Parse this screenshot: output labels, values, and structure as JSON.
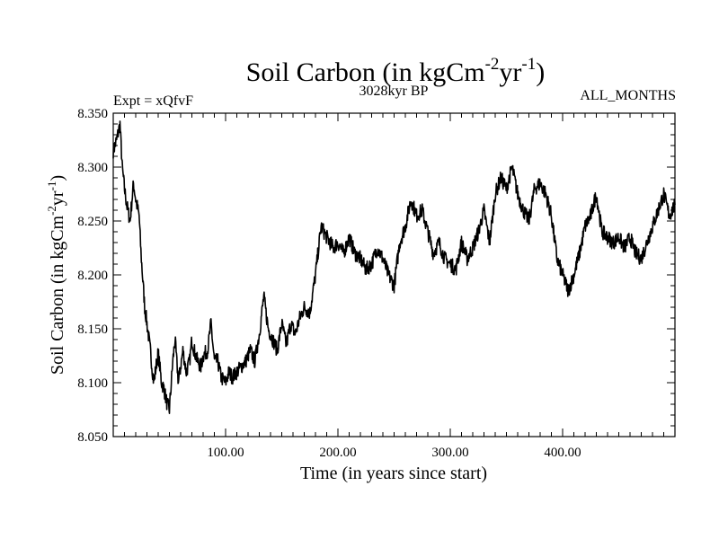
{
  "chart_data": {
    "type": "line",
    "title_main": "Soil Carbon (in kgCm",
    "title_sup1": "-2",
    "title_mid": "yr",
    "title_sup2": "-1",
    "title_end": ")",
    "subtitle_left": "Expt = xQfvF",
    "subtitle_center": "3028kyr BP",
    "subtitle_right": "ALL_MONTHS",
    "xlabel": "Time (in years since start)",
    "ylabel_main": "Soil Carbon (in kgCm",
    "ylabel_sup1": "-2",
    "ylabel_mid": "yr",
    "ylabel_sup2": "-1",
    "ylabel_end": ")",
    "xlim": [
      0,
      500
    ],
    "ylim": [
      8.05,
      8.35
    ],
    "xticks": [
      100,
      200,
      300,
      400
    ],
    "xtick_labels": [
      "100.00",
      "200.00",
      "300.00",
      "400.00"
    ],
    "yticks": [
      8.05,
      8.1,
      8.15,
      8.2,
      8.25,
      8.3,
      8.35
    ],
    "ytick_labels": [
      "8.050",
      "8.100",
      "8.150",
      "8.200",
      "8.250",
      "8.300",
      "8.350"
    ],
    "series": [
      {
        "name": "Soil Carbon",
        "color": "#000000",
        "x": [
          0,
          3,
          6,
          8,
          10,
          12,
          15,
          18,
          20,
          23,
          25,
          28,
          30,
          33,
          36,
          40,
          43,
          45,
          48,
          50,
          53,
          55,
          58,
          62,
          65,
          68,
          70,
          72,
          75,
          78,
          80,
          84,
          87,
          90,
          93,
          96,
          100,
          103,
          106,
          110,
          114,
          118,
          122,
          126,
          130,
          134,
          138,
          142,
          146,
          150,
          154,
          158,
          162,
          166,
          170,
          175,
          180,
          185,
          190,
          196,
          200,
          205,
          210,
          215,
          220,
          225,
          230,
          235,
          240,
          245,
          250,
          255,
          260,
          265,
          270,
          275,
          280,
          285,
          290,
          295,
          300,
          305,
          310,
          315,
          320,
          325,
          330,
          335,
          340,
          345,
          350,
          355,
          360,
          365,
          370,
          375,
          380,
          385,
          390,
          395,
          400,
          405,
          410,
          415,
          420,
          425,
          430,
          435,
          440,
          445,
          450,
          455,
          460,
          465,
          470,
          475,
          480,
          485,
          490,
          495,
          500
        ],
        "values": [
          8.315,
          8.325,
          8.34,
          8.3,
          8.28,
          8.265,
          8.25,
          8.285,
          8.27,
          8.255,
          8.215,
          8.17,
          8.155,
          8.13,
          8.1,
          8.128,
          8.1,
          8.095,
          8.08,
          8.075,
          8.12,
          8.14,
          8.1,
          8.13,
          8.11,
          8.12,
          8.14,
          8.13,
          8.12,
          8.115,
          8.125,
          8.13,
          8.155,
          8.12,
          8.12,
          8.105,
          8.1,
          8.11,
          8.105,
          8.11,
          8.115,
          8.12,
          8.13,
          8.12,
          8.145,
          8.18,
          8.15,
          8.14,
          8.13,
          8.155,
          8.135,
          8.155,
          8.145,
          8.16,
          8.17,
          8.165,
          8.2,
          8.245,
          8.235,
          8.225,
          8.23,
          8.22,
          8.235,
          8.22,
          8.215,
          8.205,
          8.21,
          8.225,
          8.215,
          8.2,
          8.19,
          8.23,
          8.245,
          8.27,
          8.255,
          8.26,
          8.24,
          8.22,
          8.23,
          8.215,
          8.21,
          8.205,
          8.23,
          8.215,
          8.225,
          8.24,
          8.26,
          8.23,
          8.275,
          8.29,
          8.28,
          8.3,
          8.275,
          8.26,
          8.25,
          8.28,
          8.285,
          8.275,
          8.255,
          8.215,
          8.2,
          8.185,
          8.2,
          8.22,
          8.245,
          8.255,
          8.275,
          8.24,
          8.235,
          8.23,
          8.235,
          8.225,
          8.235,
          8.22,
          8.215,
          8.23,
          8.245,
          8.26,
          8.275,
          8.255,
          8.265
        ]
      }
    ]
  }
}
